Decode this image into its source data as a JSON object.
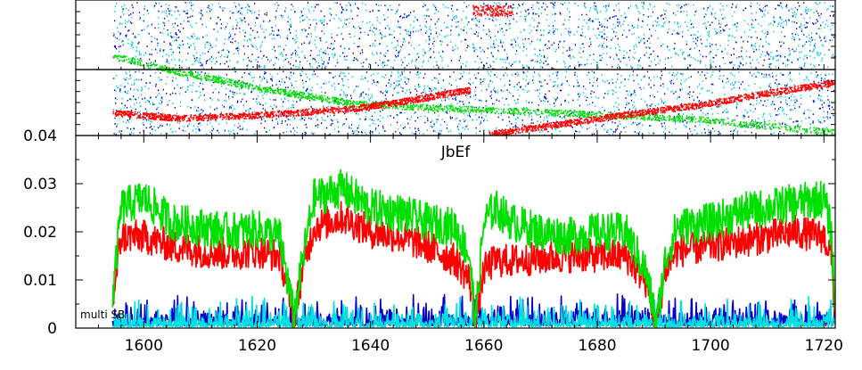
{
  "chart_data": {
    "type": "line",
    "title": "JbEf",
    "annotation": "multi SB",
    "xlim": [
      1588,
      1722
    ],
    "ylim": [
      0,
      0.04
    ],
    "x_ticks": [
      1600,
      1620,
      1640,
      1660,
      1680,
      1700,
      1720
    ],
    "x_tick_labels": [
      "1600",
      "1620",
      "1640",
      "1660",
      "1680",
      "1700",
      "1720"
    ],
    "y_ticks": [
      0,
      0.01,
      0.02,
      0.03,
      0.04
    ],
    "y_tick_labels": [
      "0",
      "0.01",
      "0.02",
      "0.03",
      "0.04"
    ],
    "grid": false,
    "data_start_x": 1594.5,
    "series": [
      {
        "color": "#00e000",
        "x": [
          1594.5,
          1596,
          1600,
          1605,
          1610,
          1615,
          1620,
          1624,
          1625.5,
          1626.5,
          1628,
          1630,
          1635,
          1640,
          1645,
          1650,
          1655,
          1657.5,
          1658.5,
          1660,
          1662,
          1665,
          1670,
          1675,
          1680,
          1685,
          1688.5,
          1690.5,
          1692,
          1694,
          1700,
          1705,
          1710,
          1715,
          1720,
          1721.3,
          1722
        ],
        "values": [
          0.006,
          0.025,
          0.027,
          0.022,
          0.021,
          0.02,
          0.0205,
          0.019,
          0.009,
          0.002,
          0.014,
          0.027,
          0.029,
          0.025,
          0.024,
          0.022,
          0.021,
          0.015,
          0.001,
          0.022,
          0.025,
          0.022,
          0.02,
          0.019,
          0.02,
          0.02,
          0.012,
          0.001,
          0.014,
          0.021,
          0.022,
          0.024,
          0.025,
          0.026,
          0.027,
          0.02,
          0.003
        ]
      },
      {
        "color": "#ff0000",
        "x": [
          1594.5,
          1596,
          1600,
          1605,
          1610,
          1615,
          1620,
          1624,
          1625.5,
          1626.5,
          1628,
          1630,
          1635,
          1640,
          1645,
          1650,
          1655,
          1657.5,
          1658.5,
          1660,
          1662,
          1665,
          1670,
          1675,
          1680,
          1685,
          1688.5,
          1690.5,
          1692,
          1694,
          1700,
          1705,
          1710,
          1715,
          1720,
          1721.3,
          1722
        ],
        "values": [
          0.005,
          0.019,
          0.019,
          0.017,
          0.016,
          0.0155,
          0.016,
          0.015,
          0.008,
          0.002,
          0.012,
          0.021,
          0.023,
          0.02,
          0.019,
          0.017,
          0.014,
          0.01,
          0.001,
          0.012,
          0.014,
          0.014,
          0.0145,
          0.015,
          0.015,
          0.015,
          0.01,
          0.001,
          0.012,
          0.016,
          0.017,
          0.018,
          0.019,
          0.02,
          0.019,
          0.015,
          0.002
        ]
      },
      {
        "color": "#0000cc",
        "x": [
          1594.5,
          1722
        ],
        "values": [
          0.004,
          0.004
        ]
      },
      {
        "color": "#00e0e0",
        "x": [
          1594.5,
          1722
        ],
        "values": [
          0.0035,
          0.0035
        ]
      }
    ]
  }
}
